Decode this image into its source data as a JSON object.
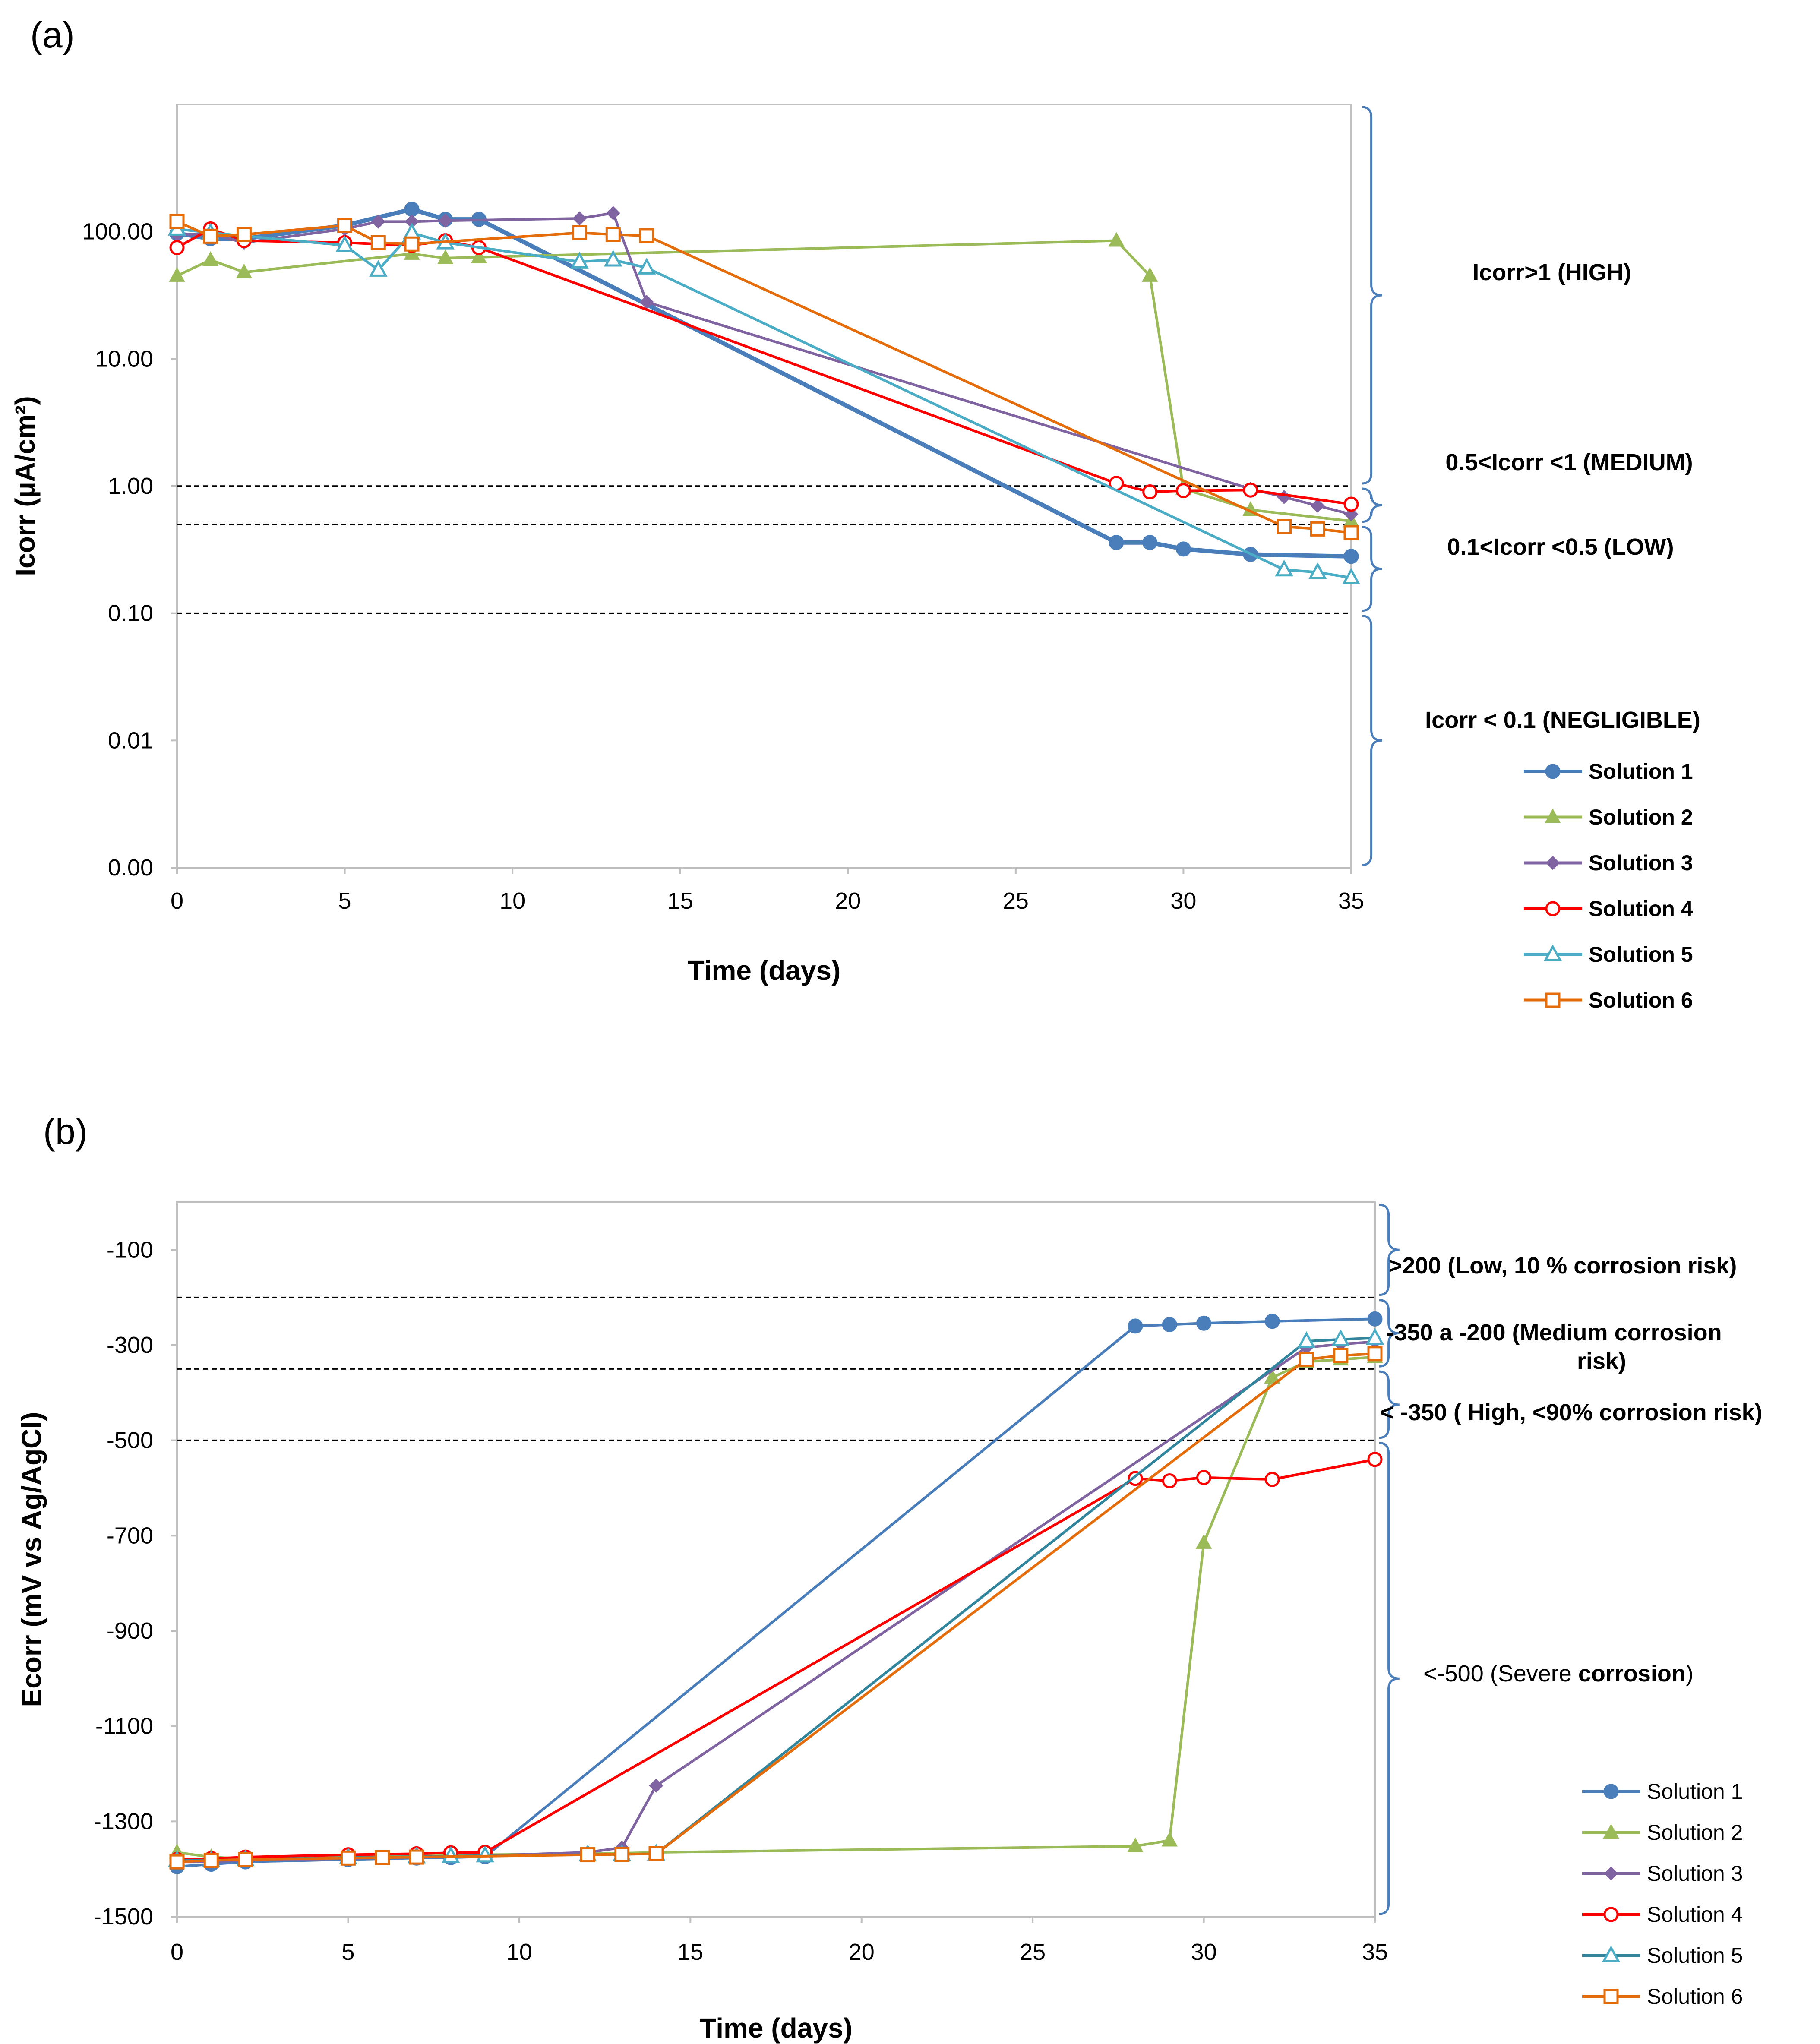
{
  "chart_data": [
    {
      "type": "line",
      "panel_label": "(a)",
      "xlabel": "Time (days)",
      "ylabel": "Icorr (µA/cm²)",
      "yscale": "log",
      "xlim": [
        0,
        35
      ],
      "ylim": [
        0.001,
        1000
      ],
      "xticks": [
        0,
        5,
        10,
        15,
        20,
        25,
        30,
        35
      ],
      "yticks": [
        0.001,
        0.01,
        0.1,
        1,
        10,
        100
      ],
      "ytick_labels": [
        "0.00",
        "0.01",
        "0.10",
        "1.00",
        "10.00",
        "100.00"
      ],
      "thresholds": [
        1,
        0.5,
        0.1
      ],
      "zones": [
        {
          "label": "Icorr>1   (HIGH)",
          "from": 1,
          "to": 1000
        },
        {
          "label": "0.5<Icorr <1   (MEDIUM)",
          "from": 0.5,
          "to": 1
        },
        {
          "label": "0.1<Icorr <0.5   (LOW)",
          "from": 0.1,
          "to": 0.5
        },
        {
          "label": "Icorr < 0.1   (NEGLIGIBLE)",
          "from": 0.001,
          "to": 0.1
        }
      ],
      "series": [
        {
          "name": "Solution 1",
          "color": "#4a7ebb",
          "marker": "circle",
          "x": [
            0,
            1,
            2,
            5,
            7,
            8,
            9,
            28,
            29,
            30,
            32,
            35
          ],
          "y": [
            97,
            88,
            88,
            112,
            150,
            125,
            125,
            0.36,
            0.36,
            0.32,
            0.29,
            0.28
          ]
        },
        {
          "name": "Solution 2",
          "color": "#9bbb59",
          "marker": "triangle",
          "x": [
            0,
            1,
            2,
            7,
            8,
            9,
            28,
            29,
            30,
            32,
            35
          ],
          "y": [
            45,
            60,
            48,
            67,
            62,
            63,
            85,
            45,
            0.95,
            0.65,
            0.53
          ]
        },
        {
          "name": "Solution 3",
          "color": "#8064a2",
          "marker": "diamond",
          "x": [
            0,
            1,
            2,
            5,
            6,
            7,
            8,
            12,
            13,
            14,
            32,
            33,
            34,
            35
          ],
          "y": [
            95,
            96,
            82,
            105,
            120,
            120,
            122,
            127,
            140,
            28,
            0.95,
            0.82,
            0.7,
            0.6
          ]
        },
        {
          "name": "Solution 4",
          "color": "#ff0000",
          "marker": "circle-open",
          "x": [
            0,
            1,
            2,
            5,
            7,
            8,
            9,
            28,
            29,
            30,
            32,
            35
          ],
          "y": [
            75,
            105,
            85,
            82,
            78,
            85,
            75,
            1.05,
            0.9,
            0.92,
            0.93,
            0.72
          ]
        },
        {
          "name": "Solution 5",
          "color": "#4bacc6",
          "marker": "triangle-open",
          "x": [
            0,
            1,
            5,
            6,
            7,
            8,
            12,
            13,
            14,
            33,
            34,
            35
          ],
          "y": [
            105,
            98,
            78,
            50,
            98,
            82,
            58,
            60,
            52,
            0.22,
            0.21,
            0.19
          ]
        },
        {
          "name": "Solution 6",
          "color": "#e46c0a",
          "marker": "square-open",
          "x": [
            0,
            1,
            2,
            5,
            6,
            7,
            12,
            13,
            14,
            33,
            34,
            35
          ],
          "y": [
            120,
            92,
            95,
            112,
            82,
            80,
            98,
            95,
            93,
            0.48,
            0.46,
            0.43
          ]
        }
      ]
    },
    {
      "type": "line",
      "panel_label": "(b)",
      "xlabel": "Time (days)",
      "ylabel": "Ecorr (mV vs  Ag/AgCl)",
      "xlim": [
        0,
        35
      ],
      "ylim": [
        -1500,
        0
      ],
      "xticks": [
        0,
        5,
        10,
        15,
        20,
        25,
        30,
        35
      ],
      "yticks": [
        -100,
        -300,
        -500,
        -700,
        -900,
        -1100,
        -1300,
        -1500
      ],
      "thresholds": [
        -200,
        -350,
        -500
      ],
      "zones": [
        {
          "label": ">200  (Low, 10 %  corrosion risk)",
          "from": -200,
          "to": 0
        },
        {
          "label": "-350 a -200  (Medium corrosion",
          "label2": "risk)",
          "from": -350,
          "to": -200
        },
        {
          "label": "< -350 ( High, <90% corrosion risk)",
          "from": -500,
          "to": -350
        },
        {
          "label": "<-500 (Severe ",
          "label_bold": "corrosion",
          "label_end": ")",
          "from": -1500,
          "to": -500
        }
      ],
      "series": [
        {
          "name": "Solution 1",
          "color": "#4a7ebb",
          "marker": "circle",
          "x": [
            0,
            1,
            2,
            5,
            7,
            8,
            9,
            28,
            29,
            30,
            32,
            35
          ],
          "y": [
            -1395,
            -1390,
            -1385,
            -1380,
            -1377,
            -1376,
            -1374,
            -260,
            -257,
            -254,
            -250,
            -245
          ]
        },
        {
          "name": "Solution 2",
          "color": "#9bbb59",
          "marker": "triangle",
          "x": [
            0,
            1,
            2,
            5,
            7,
            8,
            9,
            12,
            13,
            14,
            28,
            29,
            30,
            32,
            33,
            34,
            35
          ],
          "y": [
            -1365,
            -1375,
            -1378,
            -1375,
            -1373,
            -1372,
            -1370,
            -1368,
            -1367,
            -1365,
            -1352,
            -1340,
            -715,
            -368,
            -335,
            -330,
            -325
          ]
        },
        {
          "name": "Solution 3",
          "color": "#8064a2",
          "marker": "diamond",
          "x": [
            0,
            1,
            2,
            5,
            7,
            8,
            9,
            12,
            13,
            14,
            33,
            34,
            35
          ],
          "y": [
            -1385,
            -1385,
            -1382,
            -1378,
            -1375,
            -1373,
            -1372,
            -1365,
            -1355,
            -1225,
            -305,
            -298,
            -293
          ]
        },
        {
          "name": "Solution 4",
          "color": "#ff0000",
          "marker": "circle-open",
          "x": [
            0,
            1,
            2,
            5,
            7,
            8,
            9,
            28,
            29,
            30,
            32,
            35
          ],
          "y": [
            -1380,
            -1378,
            -1375,
            -1370,
            -1368,
            -1366,
            -1365,
            -580,
            -585,
            -578,
            -582,
            -540
          ]
        },
        {
          "name": "Solution 5",
          "color": "#4bacc6",
          "line_color": "#31859c",
          "marker": "triangle-open",
          "x": [
            0,
            1,
            2,
            5,
            7,
            8,
            9,
            12,
            13,
            14,
            33,
            34,
            35
          ],
          "y": [
            -1382,
            -1382,
            -1380,
            -1376,
            -1374,
            -1373,
            -1372,
            -1370,
            -1369,
            -1368,
            -292,
            -288,
            -285
          ]
        },
        {
          "name": "Solution 6",
          "color": "#e46c0a",
          "marker": "square-open",
          "x": [
            0,
            1,
            2,
            5,
            6,
            7,
            12,
            13,
            14,
            33,
            34,
            35
          ],
          "y": [
            -1385,
            -1382,
            -1380,
            -1377,
            -1376,
            -1375,
            -1370,
            -1369,
            -1368,
            -330,
            -322,
            -318
          ]
        }
      ]
    }
  ]
}
